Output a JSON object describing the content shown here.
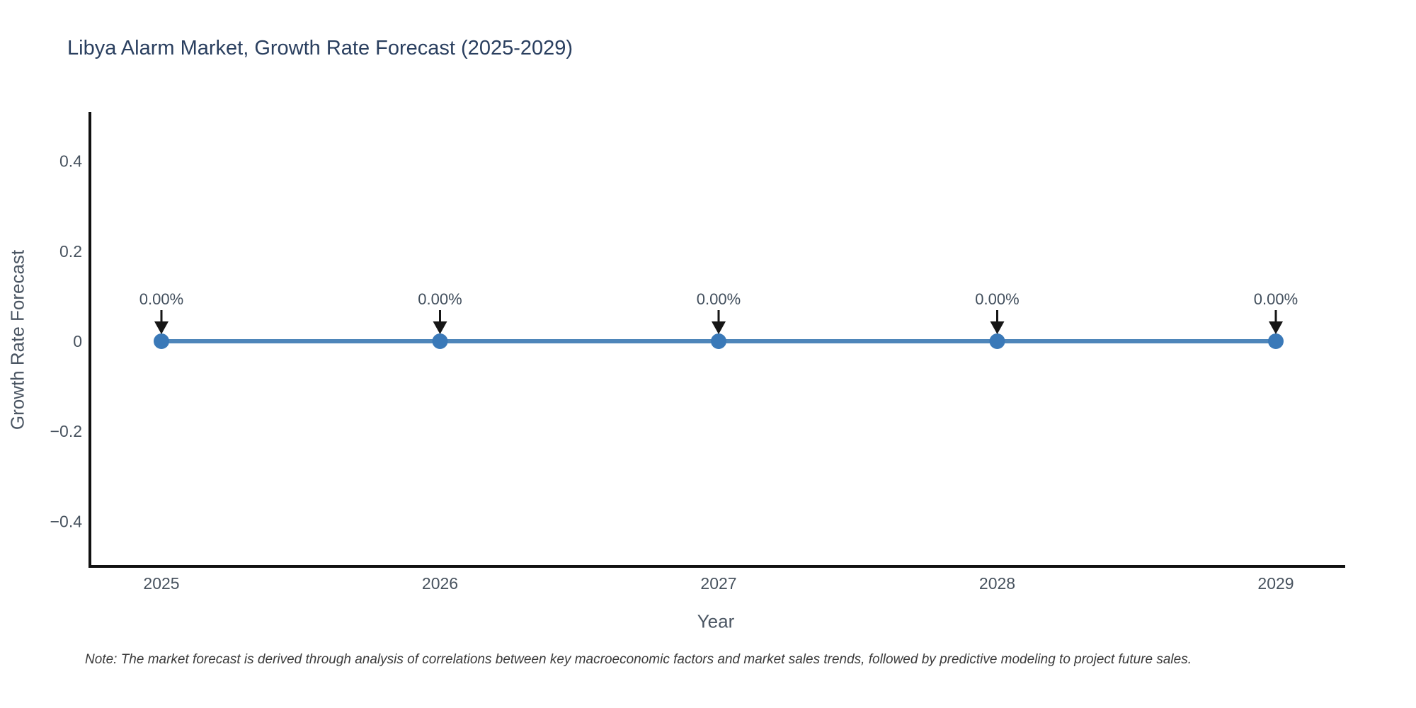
{
  "page": {
    "background": "#ffffff"
  },
  "chart_data": {
    "type": "line",
    "title": "Libya Alarm Market, Growth Rate Forecast (2025-2029)",
    "xlabel": "Year",
    "ylabel": "Growth Rate Forecast",
    "x": [
      2025,
      2026,
      2027,
      2028,
      2029
    ],
    "series": [
      {
        "name": "Growth Rate Forecast",
        "values": [
          0,
          0,
          0,
          0,
          0
        ]
      }
    ],
    "point_labels": [
      "0.00%",
      "0.00%",
      "0.00%",
      "0.00%",
      "0.00%"
    ],
    "x_tick_labels": [
      "2025",
      "2026",
      "2027",
      "2028",
      "2029"
    ],
    "y_ticks": [
      0.4,
      0.2,
      0,
      -0.2,
      -0.4
    ],
    "y_tick_labels": [
      "0.4",
      "0.2",
      "0",
      "−0.2",
      "−0.4"
    ],
    "ylim": [
      -0.5,
      0.5
    ],
    "grid": false,
    "legend": "none",
    "annotation_style": "value label with downward arrow to each point",
    "colors": {
      "line": "#4e86ba",
      "marker": "#3a79b8",
      "axis": "#111111",
      "arrow": "#161616",
      "title": "#2a3f5f",
      "tick": "#47525e"
    }
  },
  "note": "Note: The market forecast is derived through analysis of correlations between key macroeconomic factors and market sales trends, followed by predictive modeling to project future sales."
}
